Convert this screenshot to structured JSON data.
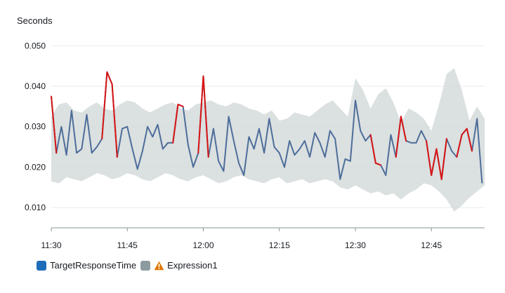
{
  "chart_data": {
    "type": "line",
    "ylabel": "Seconds",
    "ylim": [
      0.005,
      0.053
    ],
    "y_ticks": [
      0.01,
      0.02,
      0.03,
      0.04,
      0.05
    ],
    "y_tick_labels": [
      "0.010",
      "0.020",
      "0.030",
      "0.040",
      "0.050"
    ],
    "x_tick_labels": [
      "11:30",
      "11:45",
      "12:00",
      "12:15",
      "12:30",
      "12:45"
    ],
    "x_tick_minutes": [
      0,
      15,
      30,
      45,
      60,
      75
    ],
    "x_range_minutes": [
      0,
      85.5
    ],
    "grid": true,
    "legend_position": "bottom-left",
    "colors": {
      "series": "#4d6d9a",
      "anomaly": "#d91515",
      "band": "#d5dbdb",
      "legend_series": "#1f6db8",
      "legend_band": "#8d9ba0",
      "warning": "#e07700",
      "grid": "#e9ebed",
      "axis": "#879596"
    },
    "series": [
      {
        "name": "TargetResponseTime",
        "x_minutes": [
          0,
          1,
          2,
          3,
          4,
          5,
          6,
          7,
          8,
          9,
          10,
          11,
          12,
          13,
          14,
          15,
          16,
          17,
          18,
          19,
          20,
          21,
          22,
          23,
          24,
          25,
          26,
          27,
          28,
          29,
          30,
          31,
          32,
          33,
          34,
          35,
          36,
          37,
          38,
          39,
          40,
          41,
          42,
          43,
          44,
          45,
          46,
          47,
          48,
          49,
          50,
          51,
          52,
          53,
          54,
          55,
          56,
          57,
          58,
          59,
          60,
          61,
          62,
          63,
          64,
          65,
          66,
          67,
          68,
          69,
          70,
          71,
          72,
          73,
          74,
          75,
          76,
          77,
          78,
          79,
          80,
          81,
          82,
          83,
          84,
          85
        ],
        "values": [
          0.0375,
          0.0235,
          0.03,
          0.023,
          0.034,
          0.0235,
          0.0245,
          0.033,
          0.0235,
          0.025,
          0.027,
          0.0435,
          0.0405,
          0.0225,
          0.0295,
          0.03,
          0.0245,
          0.0195,
          0.024,
          0.03,
          0.0275,
          0.0305,
          0.0245,
          0.026,
          0.026,
          0.0355,
          0.035,
          0.0255,
          0.02,
          0.0235,
          0.0425,
          0.0225,
          0.0295,
          0.0215,
          0.019,
          0.0325,
          0.0265,
          0.021,
          0.018,
          0.0275,
          0.0245,
          0.0295,
          0.0235,
          0.032,
          0.025,
          0.0235,
          0.02,
          0.0265,
          0.023,
          0.0245,
          0.0265,
          0.0225,
          0.0285,
          0.026,
          0.0225,
          0.029,
          0.027,
          0.017,
          0.022,
          0.0215,
          0.0365,
          0.029,
          0.0265,
          0.028,
          0.021,
          0.0205,
          0.018,
          0.028,
          0.0225,
          0.0325,
          0.0265,
          0.026,
          0.026,
          0.029,
          0.0265,
          0.018,
          0.0245,
          0.017,
          0.027,
          0.024,
          0.0225,
          0.028,
          0.0295,
          0.024,
          0.032,
          0.016
        ]
      },
      {
        "name": "Expression1",
        "x_minutes": [
          0,
          1.5,
          3,
          4.5,
          6,
          7.5,
          9,
          10.5,
          12,
          13.5,
          15,
          16.5,
          18,
          19.5,
          21,
          22.5,
          24,
          25.5,
          27,
          28.5,
          30,
          31.5,
          33,
          34.5,
          36,
          37.5,
          39,
          40.5,
          42,
          43.5,
          45,
          46.5,
          48,
          49.5,
          51,
          52.5,
          54,
          55.5,
          57,
          58.5,
          60,
          61.5,
          63,
          64.5,
          66,
          67.5,
          69,
          70.5,
          72,
          73.5,
          75,
          76.5,
          78,
          79.5,
          81,
          82.5,
          84,
          85.5
        ],
        "band_upper": [
          0.0325,
          0.0355,
          0.036,
          0.034,
          0.0335,
          0.035,
          0.036,
          0.0345,
          0.034,
          0.0355,
          0.0365,
          0.036,
          0.0345,
          0.0335,
          0.0345,
          0.0355,
          0.036,
          0.0345,
          0.034,
          0.0355,
          0.036,
          0.0365,
          0.0355,
          0.035,
          0.036,
          0.0355,
          0.0345,
          0.034,
          0.033,
          0.034,
          0.0315,
          0.032,
          0.0335,
          0.033,
          0.0325,
          0.034,
          0.0355,
          0.0365,
          0.0345,
          0.0325,
          0.042,
          0.039,
          0.0345,
          0.038,
          0.0395,
          0.036,
          0.031,
          0.0345,
          0.0335,
          0.032,
          0.029,
          0.0355,
          0.043,
          0.0445,
          0.039,
          0.0315,
          0.035,
          0.032
        ],
        "band_lower": [
          0.0165,
          0.016,
          0.0175,
          0.017,
          0.0165,
          0.0175,
          0.0185,
          0.018,
          0.017,
          0.0175,
          0.0185,
          0.018,
          0.017,
          0.0165,
          0.0175,
          0.0185,
          0.018,
          0.017,
          0.0165,
          0.0175,
          0.018,
          0.017,
          0.016,
          0.0165,
          0.0175,
          0.018,
          0.017,
          0.0165,
          0.016,
          0.017,
          0.0175,
          0.016,
          0.0165,
          0.017,
          0.016,
          0.0165,
          0.017,
          0.0165,
          0.015,
          0.0145,
          0.0155,
          0.0145,
          0.0135,
          0.014,
          0.013,
          0.0135,
          0.012,
          0.0135,
          0.0145,
          0.016,
          0.0155,
          0.014,
          0.012,
          0.009,
          0.0105,
          0.0125,
          0.014,
          0.0155
        ]
      }
    ],
    "anomaly_segments": [
      [
        0,
        1
      ],
      [
        10,
        11
      ],
      [
        11,
        12
      ],
      [
        12,
        13
      ],
      [
        24,
        25
      ],
      [
        25,
        26
      ],
      [
        29,
        30
      ],
      [
        30,
        31
      ],
      [
        63,
        64
      ],
      [
        64,
        65
      ],
      [
        68,
        69
      ],
      [
        69,
        70
      ],
      [
        74,
        75
      ],
      [
        75,
        76
      ],
      [
        76,
        77
      ],
      [
        77,
        78
      ],
      [
        80,
        81
      ],
      [
        81,
        82
      ],
      [
        82,
        83
      ]
    ]
  },
  "legend": {
    "items": [
      {
        "label": "TargetResponseTime",
        "color": "#1f6db8",
        "warning": false
      },
      {
        "label": "Expression1",
        "color": "#8d9ba0",
        "warning": true
      }
    ]
  }
}
